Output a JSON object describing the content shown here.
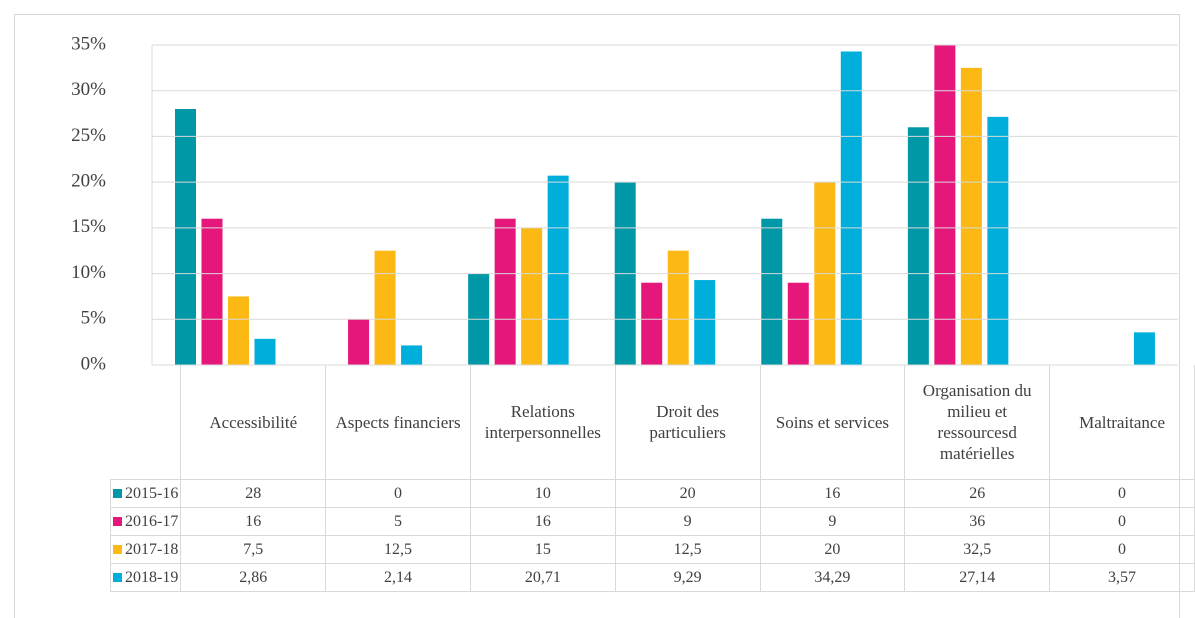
{
  "chart_data": {
    "type": "bar",
    "categories": [
      "Accessibilité",
      "Aspects financiers",
      "Relations interpersonnelles",
      "Droit des particuliers",
      "Soins et services",
      "Organisation du milieu et ressourcesd matérielles",
      "Maltraitance"
    ],
    "series": [
      {
        "name": "2015-16",
        "color": "#0097a7",
        "values": [
          28,
          0,
          10,
          20,
          16,
          26,
          0
        ],
        "value_labels": [
          "28",
          "0",
          "10",
          "20",
          "16",
          "26",
          "0"
        ]
      },
      {
        "name": "2016-17",
        "color": "#e6177a",
        "values": [
          16,
          5,
          16,
          9,
          9,
          36,
          0
        ],
        "value_labels": [
          "16",
          "5",
          "16",
          "9",
          "9",
          "36",
          "0"
        ]
      },
      {
        "name": "2017-18",
        "color": "#fdb913",
        "values": [
          7.5,
          12.5,
          15,
          12.5,
          20,
          32.5,
          0
        ],
        "value_labels": [
          "7,5",
          "12,5",
          "15",
          "12,5",
          "20",
          "32,5",
          "0"
        ]
      },
      {
        "name": "2018-19",
        "color": "#00aedb",
        "values": [
          2.86,
          2.14,
          20.71,
          9.29,
          34.29,
          27.14,
          3.57
        ],
        "value_labels": [
          "2,86",
          "2,14",
          "20,71",
          "9,29",
          "34,29",
          "27,14",
          "3,57"
        ]
      }
    ],
    "ylim": [
      0,
      35
    ],
    "yticks": [
      {
        "value": 0,
        "label": "0%"
      },
      {
        "value": 5,
        "label": "5%"
      },
      {
        "value": 10,
        "label": "10%"
      },
      {
        "value": 15,
        "label": "15%"
      },
      {
        "value": 20,
        "label": "20%"
      },
      {
        "value": 25,
        "label": "25%"
      },
      {
        "value": 30,
        "label": "30%"
      },
      {
        "value": 35,
        "label": "35%"
      }
    ],
    "grid": true
  }
}
